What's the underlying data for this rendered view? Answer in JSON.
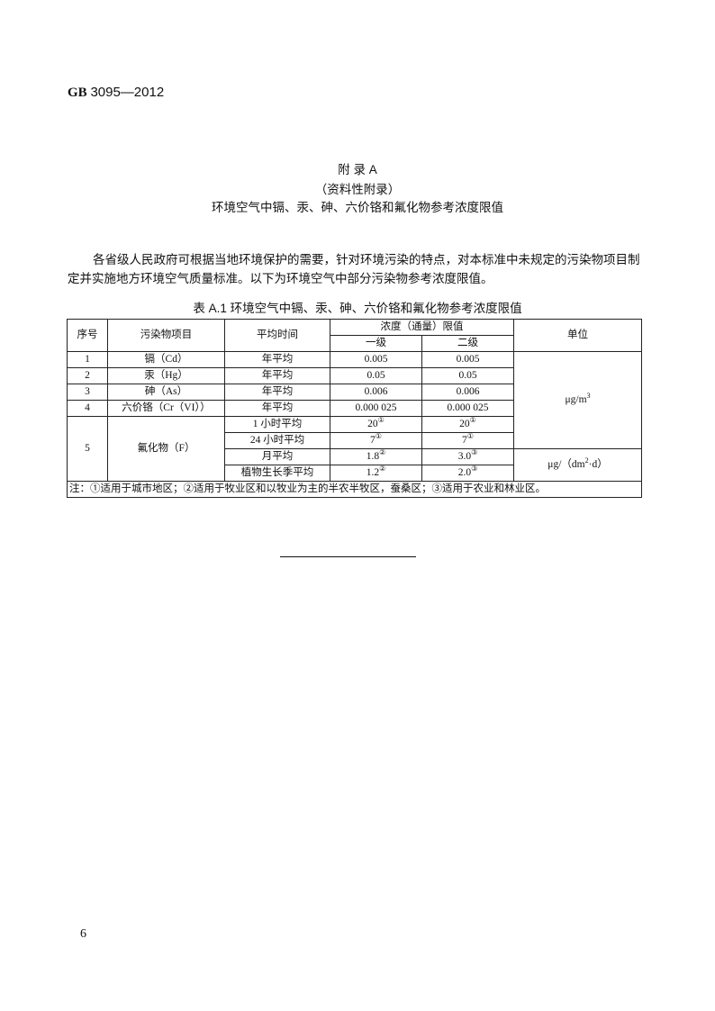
{
  "header": {
    "standard_prefix": "GB",
    "standard_number": "3095—2012"
  },
  "appendix": {
    "label": "附  录  A",
    "type": "（资料性附录）",
    "title": "环境空气中镉、汞、砷、六价铬和氟化物参考浓度限值"
  },
  "paragraph": "各省级人民政府可根据当地环境保护的需要，针对环境污染的特点，对本标准中未规定的污染物项目制定并实施地方环境空气质量标准。以下为环境空气中部分污染物参考浓度限值。",
  "table": {
    "caption": "表 A.1   环境空气中镉、汞、砷、六价铬和氟化物参考浓度限值",
    "headers": {
      "no": "序号",
      "pollutant": "污染物项目",
      "period": "平均时间",
      "limit": "浓度（通量）限值",
      "grade1": "一级",
      "grade2": "二级",
      "unit": "单位"
    },
    "rows": [
      {
        "no": "1",
        "pollutant": "镉（Cd）",
        "period": "年平均",
        "g1": "0.005",
        "g2": "0.005"
      },
      {
        "no": "2",
        "pollutant": "汞（Hg）",
        "period": "年平均",
        "g1": "0.05",
        "g2": "0.05"
      },
      {
        "no": "3",
        "pollutant": "砷（As）",
        "period": "年平均",
        "g1": "0.006",
        "g2": "0.006"
      },
      {
        "no": "4",
        "pollutant": "六价铬（Cr（VI））",
        "period": "年平均",
        "g1": "0.000 025",
        "g2": "0.000 025"
      }
    ],
    "fluoride": {
      "no": "5",
      "pollutant": "氟化物（F）",
      "sub": [
        {
          "period": "1 小时平均",
          "g1": "20",
          "g1_note": "①",
          "g2": "20",
          "g2_note": "①"
        },
        {
          "period": "24 小时平均",
          "g1": "7",
          "g1_note": "①",
          "g2": "7",
          "g2_note": "①"
        },
        {
          "period": "月平均",
          "g1": "1.8",
          "g1_note": "②",
          "g2": "3.0",
          "g2_note": "③"
        },
        {
          "period": "植物生长季平均",
          "g1": "1.2",
          "g1_note": "②",
          "g2": "2.0",
          "g2_note": "③"
        }
      ]
    },
    "unit1": {
      "base": "μg/m",
      "sup": "3"
    },
    "unit2": {
      "pre": "μg/（dm",
      "sup": "2",
      "post": "·d）"
    },
    "note": "注：①适用于城市地区；②适用于牧业区和以牧业为主的半农半牧区，蚕桑区；③适用于农业和林业区。"
  },
  "page_number": "6"
}
